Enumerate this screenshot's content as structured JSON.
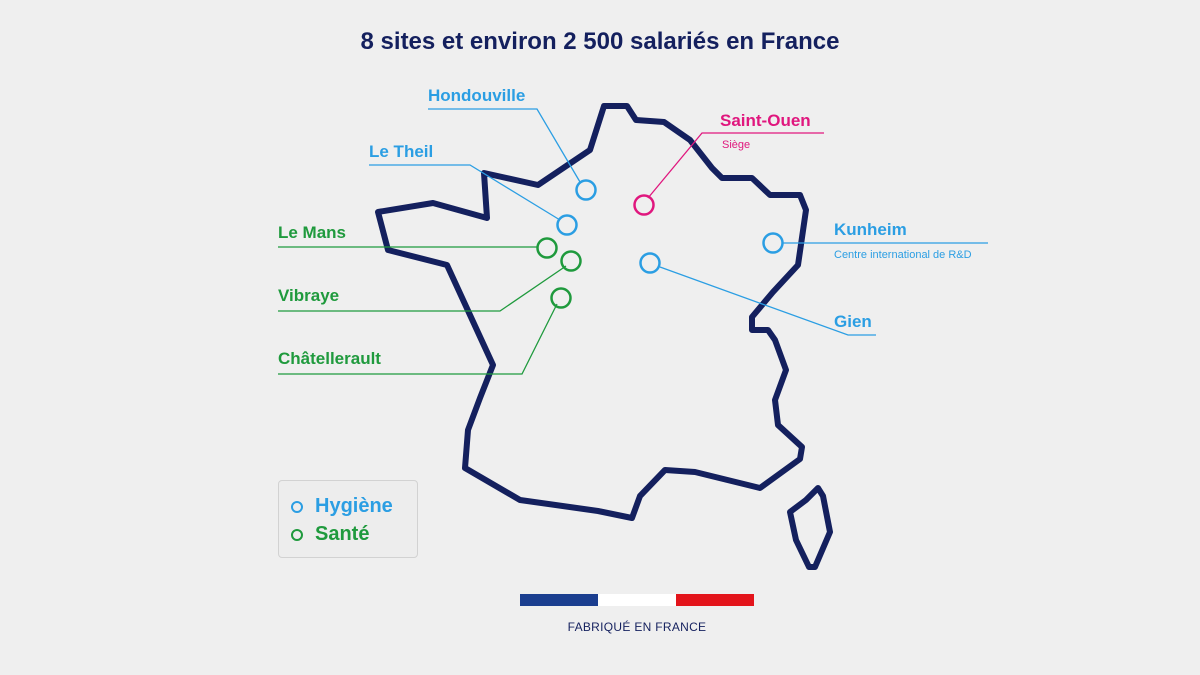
{
  "title": "8 sites et environ 2 500 salariés en France",
  "sites": {
    "hondouville": {
      "label": "Hondouville",
      "category": "Hygiène"
    },
    "le_theil": {
      "label": "Le Theil",
      "category": "Hygiène"
    },
    "saint_ouen": {
      "label": "Saint-Ouen",
      "sublabel": "Siège",
      "category": "Siège"
    },
    "kunheim": {
      "label": "Kunheim",
      "sublabel": "Centre international de R&D",
      "category": "Hygiène"
    },
    "gien": {
      "label": "Gien",
      "category": "Hygiène"
    },
    "le_mans": {
      "label": "Le Mans",
      "category": "Santé"
    },
    "vibraye": {
      "label": "Vibraye",
      "category": "Santé"
    },
    "chatellerault": {
      "label": "Châtellerault",
      "category": "Santé"
    }
  },
  "legend": {
    "hygiene": {
      "label": "Hygiène",
      "color": "#2b9ee3"
    },
    "sante": {
      "label": "Santé",
      "color": "#1f9a3d"
    }
  },
  "colors": {
    "outline": "#14205e",
    "hygiene": "#2b9ee3",
    "sante": "#1f9a3d",
    "siege": "#e0177e",
    "flag_blue": "#1b3e8f",
    "flag_white": "#ffffff",
    "flag_red": "#e3141b"
  },
  "footer": {
    "made_in": "FABRIQUÉ EN FRANCE"
  }
}
